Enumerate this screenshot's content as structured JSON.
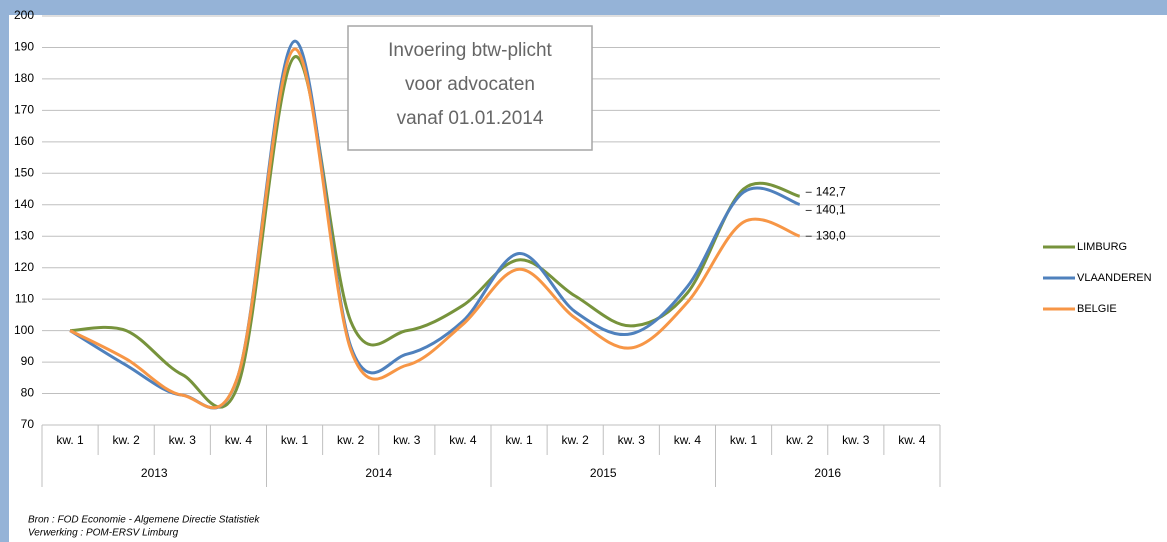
{
  "chart_data": {
    "type": "line",
    "categories": [
      "kw. 1",
      "kw. 2",
      "kw. 3",
      "kw. 4",
      "kw. 1",
      "kw. 2",
      "kw. 3",
      "kw. 4",
      "kw. 1",
      "kw. 2",
      "kw. 3",
      "kw. 4",
      "kw. 1",
      "kw. 2",
      "kw. 3",
      "kw. 4"
    ],
    "category_groups": [
      "2013",
      "2014",
      "2015",
      "2016"
    ],
    "series": [
      {
        "name": "LIMBURG",
        "color": "#77933c",
        "values": [
          100,
          100,
          86,
          83,
          187,
          103,
          100,
          108,
          122.5,
          111,
          101.5,
          112,
          145,
          142.7,
          null,
          null
        ],
        "value_labels": [
          null,
          null,
          null,
          null,
          null,
          null,
          null,
          null,
          null,
          null,
          null,
          null,
          null,
          "142,7",
          null,
          null
        ]
      },
      {
        "name": "VLAANDEREN",
        "color": "#4f81bd",
        "values": [
          100,
          89,
          79.5,
          86,
          192,
          95,
          92.5,
          103,
          124.5,
          106,
          99,
          114,
          144,
          140.1,
          null,
          null
        ],
        "value_labels": [
          null,
          null,
          null,
          null,
          null,
          null,
          null,
          null,
          null,
          null,
          null,
          null,
          null,
          "140,1",
          null,
          null
        ]
      },
      {
        "name": "BELGIE",
        "color": "#f79646",
        "values": [
          100,
          91,
          79.5,
          86,
          189.5,
          94,
          89,
          102,
          119.5,
          104,
          94.5,
          109,
          134.5,
          130.0,
          null,
          null
        ],
        "value_labels": [
          null,
          null,
          null,
          null,
          null,
          null,
          null,
          null,
          null,
          null,
          null,
          null,
          null,
          "130,0",
          null,
          null
        ]
      }
    ],
    "ylim": [
      70,
      200
    ],
    "yticks": [
      70,
      80,
      90,
      100,
      110,
      120,
      130,
      140,
      150,
      160,
      170,
      180,
      190,
      200
    ],
    "grid": true,
    "legend": "right",
    "annotation": [
      "Invoering btw-plicht",
      "voor advocaten",
      "vanaf 01.01.2014"
    ],
    "source": [
      "Bron : FOD Economie - Algemene Directie Statistiek",
      "Verwerking : POM-ERSV Limburg"
    ]
  }
}
